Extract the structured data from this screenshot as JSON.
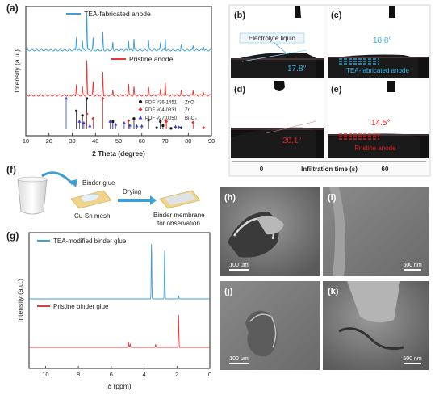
{
  "panels": {
    "a": {
      "label": "(a)",
      "legend_tea": "TEA-fabricated anode",
      "legend_pristine": "Pristine anode",
      "pdf_entries": [
        {
          "code": "PDF #36-1451",
          "phase": "ZnO",
          "color": "#111111",
          "marker": "circle"
        },
        {
          "code": "PDF #04-0831",
          "phase": "Zn",
          "color": "#e03030",
          "marker": "diamond"
        },
        {
          "code": "PDF #27-0050",
          "phase": "Bi₂O₃",
          "color": "#3a3acc",
          "marker": "triangle"
        }
      ]
    },
    "b": {
      "label": "(b)",
      "annotation": "Electrolyte liquid",
      "angle": "17.8°"
    },
    "c": {
      "label": "(c)",
      "angle": "18.8°",
      "caption": "TEA-fabricated anode"
    },
    "d": {
      "label": "(d)",
      "angle": "20.1°"
    },
    "e": {
      "label": "(e)",
      "angle": "14.5°",
      "caption": "Pristine anode"
    },
    "time_axis": {
      "start": "0",
      "label": "Infiltration time (s)",
      "end": "60"
    },
    "f": {
      "label": "(f)",
      "binder_glue": "Binder glue",
      "mesh": "Cu-Sn mesh",
      "step": "Drying",
      "result_line1": "Binder membrane",
      "result_line2": "for observation"
    },
    "g": {
      "label": "(g)",
      "legend_tea": "TEA-modified binder glue",
      "legend_pristine": "Pristine binder glue"
    },
    "h": {
      "label": "(h)",
      "scale": "100 μm"
    },
    "i": {
      "label": "(i)",
      "scale": "500 nm"
    },
    "j": {
      "label": "(j)",
      "scale": "100 μm"
    },
    "k": {
      "label": "(k)",
      "scale": "500 nm"
    }
  },
  "chart_data": [
    {
      "type": "line",
      "id": "xrd",
      "xlabel": "2 Theta (degree)",
      "ylabel": "Intensity (a.u.)",
      "xlim": [
        10,
        90
      ],
      "xticks": [
        10,
        20,
        30,
        40,
        50,
        60,
        70,
        80,
        90
      ],
      "series": [
        {
          "name": "TEA-fabricated anode",
          "color": "#3b9fd8",
          "peaks": [
            [
              31.8,
              0.35
            ],
            [
              34.4,
              0.25
            ],
            [
              36.3,
              1.0
            ],
            [
              39.0,
              0.3
            ],
            [
              43.2,
              0.45
            ],
            [
              47.5,
              0.2
            ],
            [
              54.3,
              0.25
            ],
            [
              56.6,
              0.3
            ],
            [
              62.9,
              0.25
            ],
            [
              68.0,
              0.2
            ],
            [
              70.1,
              0.3
            ],
            [
              77.0,
              0.15
            ],
            [
              82.1,
              0.12
            ],
            [
              86.6,
              0.1
            ]
          ]
        },
        {
          "name": "Pristine anode",
          "color": "#e03c3c",
          "peaks": [
            [
              31.8,
              0.3
            ],
            [
              34.4,
              0.22
            ],
            [
              36.3,
              0.9
            ],
            [
              39.0,
              0.35
            ],
            [
              43.2,
              0.6
            ],
            [
              47.5,
              0.15
            ],
            [
              54.3,
              0.3
            ],
            [
              56.6,
              0.22
            ],
            [
              62.9,
              0.2
            ],
            [
              68.0,
              0.18
            ],
            [
              70.1,
              0.35
            ],
            [
              77.0,
              0.12
            ],
            [
              82.1,
              0.14
            ],
            [
              86.6,
              0.08
            ]
          ]
        }
      ],
      "reference_sticks": {
        "ZnO": [
          [
            31.8,
            0.6
          ],
          [
            34.4,
            0.45
          ],
          [
            36.3,
            1.0
          ],
          [
            47.5,
            0.25
          ],
          [
            56.6,
            0.35
          ],
          [
            62.9,
            0.3
          ],
          [
            66.4,
            0.05
          ],
          [
            68.0,
            0.25
          ],
          [
            69.1,
            0.12
          ],
          [
            72.6,
            0.03
          ],
          [
            77.0,
            0.05
          ]
        ],
        "Zn": [
          [
            36.3,
            0.5
          ],
          [
            39.0,
            0.35
          ],
          [
            43.2,
            1.0
          ],
          [
            54.3,
            0.28
          ],
          [
            70.1,
            0.3
          ],
          [
            70.6,
            0.25
          ],
          [
            82.1,
            0.22
          ],
          [
            86.6,
            0.05
          ]
        ],
        "Bi2O3": [
          [
            27.4,
            1.0
          ],
          [
            33.1,
            0.25
          ],
          [
            35.0,
            0.2
          ],
          [
            37.6,
            0.1
          ],
          [
            46.3,
            0.25
          ],
          [
            48.7,
            0.15
          ],
          [
            52.4,
            0.2
          ],
          [
            54.8,
            0.12
          ],
          [
            57.8,
            0.1
          ],
          [
            60.0,
            0.1
          ],
          [
            74.5,
            0.08
          ],
          [
            76.0,
            0.06
          ]
        ]
      }
    },
    {
      "type": "line",
      "id": "nmr",
      "xlabel": "δ (ppm)",
      "ylabel": "Intensity (a.u.)",
      "xlim": [
        11,
        0
      ],
      "xticks": [
        10,
        8,
        6,
        4,
        2,
        0
      ],
      "series": [
        {
          "name": "TEA-modified binder glue",
          "color": "#3b9fd8",
          "peaks": [
            [
              3.55,
              1.0
            ],
            [
              2.75,
              0.88
            ],
            [
              1.9,
              0.05
            ]
          ]
        },
        {
          "name": "Pristine binder glue",
          "color": "#e03c3c",
          "peaks": [
            [
              4.95,
              0.15
            ],
            [
              4.85,
              0.1
            ],
            [
              3.3,
              0.08
            ],
            [
              1.9,
              1.0
            ]
          ]
        }
      ]
    }
  ]
}
